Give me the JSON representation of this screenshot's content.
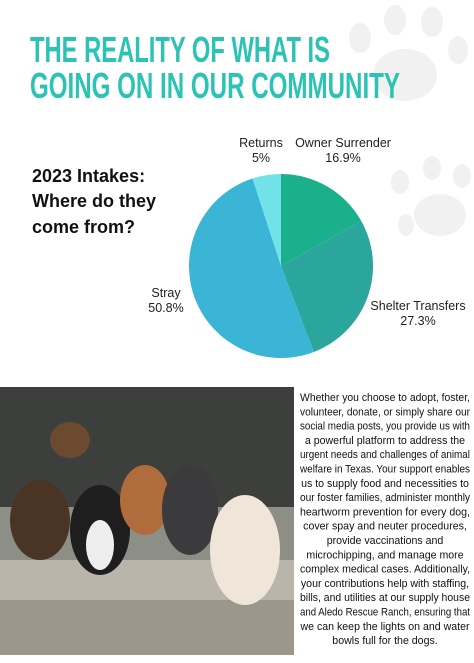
{
  "header": {
    "title_lines": [
      "THE REALITY OF WHAT IS",
      "GOING ON IN OUR COMMUNITY"
    ]
  },
  "chart_data": {
    "type": "pie",
    "title_lines": [
      "2023 Intakes:",
      "Where do they",
      "come from?"
    ],
    "categories": [
      "Owner Surrender",
      "Shelter Transfers",
      "Stray",
      "Returns"
    ],
    "values": [
      16.9,
      27.3,
      50.8,
      5
    ],
    "value_labels": [
      "16.9%",
      "27.3%",
      "50.8%",
      "5%"
    ],
    "colors": [
      "#1bb08c",
      "#2aa69c",
      "#3ab5d5",
      "#72e2e9"
    ]
  },
  "body": {
    "lines": [
      "Whether you choose to adopt, foster,",
      "volunteer, donate, or simply share our",
      "social media posts, you provide us with",
      "a powerful platform to address the",
      "urgent needs and challenges of animal",
      "welfare in Texas. Your support enables",
      "us to supply food and necessities to",
      "our foster families, administer monthly",
      "heartworm prevention for every dog,",
      "cover spay and neuter procedures,",
      "provide vaccinations and",
      "microchipping, and manage more",
      "complex medical cases. Additionally,",
      "your contributions help with staffing,",
      "bills, and utilities at our supply house",
      "and Aledo Rescue Ranch, ensuring that",
      "we can keep the lights on and water",
      "bowls full for the dogs."
    ]
  }
}
